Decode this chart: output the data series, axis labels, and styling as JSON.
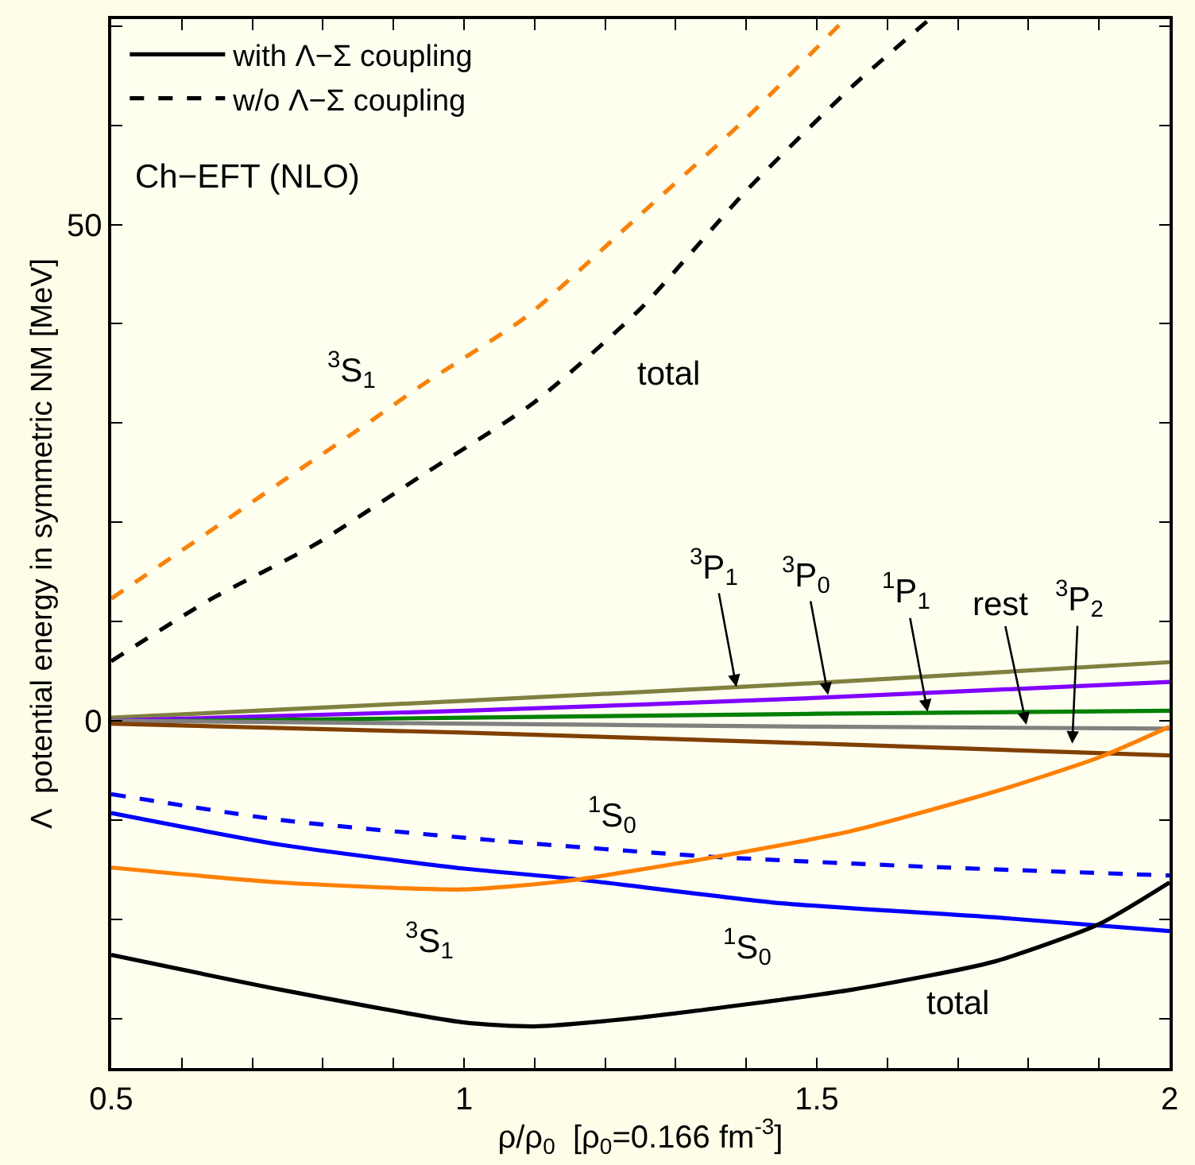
{
  "chart_data": {
    "type": "line",
    "xlabel": "ρ/ρ$_{0}$  [ρ$_{0}$=0.166 fm$^{-3}$]",
    "ylabel": "Λ  potential energy in symmetric NM [MeV]",
    "xlim": [
      0.5,
      2
    ],
    "ylim": [
      -35,
      70.7
    ],
    "xticks": [
      0.5,
      {
        "value": 0.6,
        "label": null
      },
      {
        "value": 0.7,
        "label": null
      },
      {
        "value": 0.8,
        "label": null
      },
      {
        "value": 0.9,
        "label": null
      },
      1,
      {
        "value": 1.1,
        "label": null
      },
      {
        "value": 1.2,
        "label": null
      },
      {
        "value": 1.3,
        "label": null
      },
      {
        "value": 1.4,
        "label": null
      },
      1.5,
      {
        "value": 1.6,
        "label": null
      },
      {
        "value": 1.7,
        "label": null
      },
      {
        "value": 1.8,
        "label": null
      },
      {
        "value": 1.9,
        "label": null
      },
      2
    ],
    "yticks": [
      {
        "value": -30,
        "label": null
      },
      {
        "value": -20,
        "label": null
      },
      {
        "value": -10,
        "label": null
      },
      0,
      {
        "value": 10,
        "label": null
      },
      {
        "value": 20,
        "label": null
      },
      {
        "value": 30,
        "label": null
      },
      {
        "value": 40,
        "label": null
      },
      50,
      {
        "value": 60,
        "label": null
      },
      {
        "value": 70,
        "label": null
      }
    ],
    "grid": false,
    "legend": "top left",
    "marker": "none",
    "series": [
      {
        "color": "#ff8000",
        "line_style": "dashed",
        "x": [
          0.5,
          0.64,
          0.74,
          0.87,
          0.94,
          1.09,
          1.25,
          1.4,
          1.54
        ],
        "values": [
          12.3,
          19.1,
          24.0,
          30.3,
          33.8,
          40.8,
          51.0,
          60.7,
          70.7
        ]
      },
      {
        "name": "w/o Λ−Σ coupling",
        "color": "#000000",
        "line_style": "dashed",
        "x": [
          0.5,
          0.64,
          0.79,
          0.94,
          1.1,
          1.25,
          1.4,
          1.55,
          1.66
        ],
        "values": [
          6.0,
          12.2,
          17.8,
          24.7,
          32.1,
          41.5,
          53.4,
          63.9,
          70.7
        ]
      },
      {
        "color": "#808040",
        "line_style": "solid",
        "x": [
          0.5,
          1,
          1.5,
          2
        ],
        "values": [
          0.3,
          2.0,
          3.8,
          5.9
        ]
      },
      {
        "color": "#8000ff",
        "line_style": "solid",
        "x": [
          0.5,
          1,
          1.5,
          2
        ],
        "values": [
          0.0,
          1.0,
          2.3,
          3.9
        ]
      },
      {
        "color": "#008000",
        "line_style": "solid",
        "x": [
          0.5,
          1,
          1.5,
          2
        ],
        "values": [
          -0.1,
          0.3,
          0.7,
          1.0
        ]
      },
      {
        "color": "#808080",
        "line_style": "solid",
        "x": [
          0.5,
          1,
          1.5,
          2
        ],
        "values": [
          0.0,
          -0.3,
          -0.6,
          -0.8
        ]
      },
      {
        "color": "#804000",
        "line_style": "solid",
        "x": [
          0.5,
          1,
          1.5,
          2
        ],
        "values": [
          -0.3,
          -1.2,
          -2.3,
          -3.5
        ]
      },
      {
        "color": "#0000ff",
        "line_style": "dashed",
        "x": [
          0.5,
          0.74,
          1.05,
          1.35,
          1.65,
          2
        ],
        "values": [
          -7.4,
          -10.0,
          -12.1,
          -13.7,
          -14.7,
          -15.6
        ]
      },
      {
        "color": "#0000ff",
        "line_style": "solid",
        "x": [
          0.5,
          0.74,
          1.0,
          1.15,
          1.45,
          1.75,
          2
        ],
        "values": [
          -9.3,
          -12.5,
          -14.9,
          -15.9,
          -18.4,
          -19.8,
          -21.2
        ]
      },
      {
        "color": "#ff8000",
        "line_style": "solid",
        "x": [
          0.5,
          0.74,
          1.0,
          1.15,
          1.35,
          1.55,
          1.75,
          1.9,
          2
        ],
        "values": [
          -14.8,
          -16.3,
          -17.0,
          -16.1,
          -13.8,
          -11.1,
          -7.2,
          -3.7,
          -0.6
        ]
      },
      {
        "name": "with Λ−Σ coupling",
        "color": "#000000",
        "line_style": "solid",
        "x": [
          0.5,
          0.74,
          1.0,
          1.1,
          1.25,
          1.55,
          1.75,
          1.9,
          2
        ],
        "values": [
          -23.6,
          -27.1,
          -30.4,
          -30.8,
          -29.9,
          -27.1,
          -24.3,
          -20.5,
          -16.3
        ]
      }
    ],
    "annotations": [
      "Ch−EFT (NLO)",
      "$^{3}$S$_{1}$",
      "total",
      "$^{1}$S$_{0}$",
      "$^{3}$S$_{1}$",
      "$^{1}$S$_{0}$",
      "total",
      {
        "text": "$^{3}$P$_{1}$",
        "x": 1.386,
        "y": 3.4
      },
      {
        "text": "$^{3}$P$_{0}$",
        "x": 1.516,
        "y": 2.6
      },
      {
        "text": "$^{1}$P$_{1}$",
        "x": 1.657,
        "y": 0.9
      },
      {
        "text": "rest",
        "x": 1.797,
        "y": -0.4
      },
      {
        "text": "$^{3}$P$_{2}$",
        "x": 1.862,
        "y": -2.3
      }
    ]
  }
}
